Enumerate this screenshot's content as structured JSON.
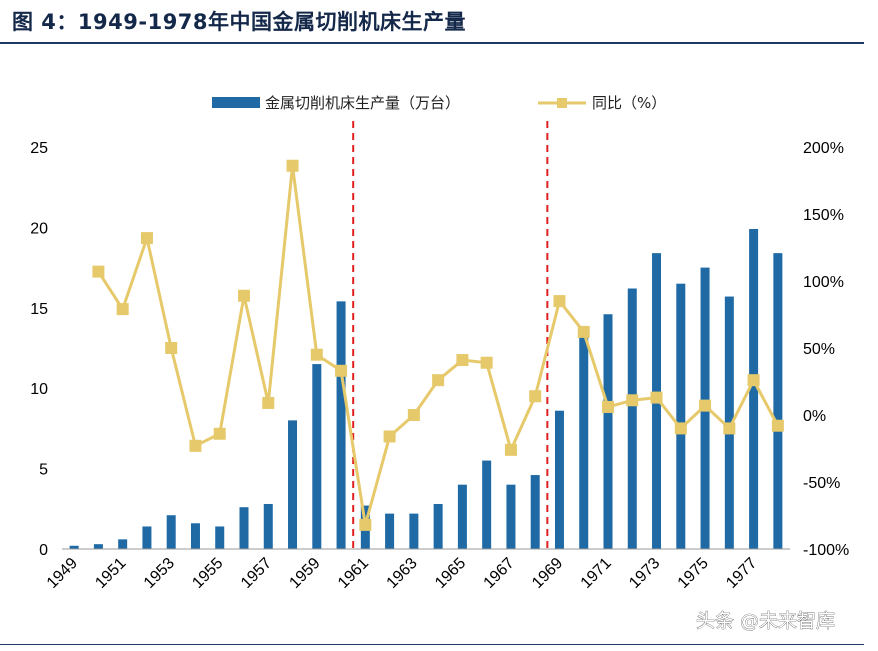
{
  "header": {
    "title": "图 4：1949-1978年中国金属切削机床生产量"
  },
  "watermark": "头条 @未来智库",
  "chart_data": {
    "type": "bar+line",
    "categories": [
      "1949",
      "1950",
      "1951",
      "1952",
      "1953",
      "1954",
      "1955",
      "1956",
      "1957",
      "1958",
      "1959",
      "1960",
      "1961",
      "1962",
      "1963",
      "1964",
      "1965",
      "1966",
      "1967",
      "1968",
      "1969",
      "1970",
      "1971",
      "1972",
      "1973",
      "1974",
      "1975",
      "1976",
      "1977",
      "1978"
    ],
    "x_tick_labels": [
      "1949",
      "1951",
      "1953",
      "1955",
      "1957",
      "1959",
      "1961",
      "1963",
      "1965",
      "1967",
      "1969",
      "1971",
      "1973",
      "1975",
      "1977"
    ],
    "series": [
      {
        "name": "金属切削机床生产量（万台）",
        "type": "bar",
        "axis": "left",
        "color": "#1f6aa5",
        "values": [
          0.2,
          0.3,
          0.6,
          1.4,
          2.1,
          1.6,
          1.4,
          2.6,
          2.8,
          8.0,
          11.5,
          15.4,
          2.7,
          2.2,
          2.2,
          2.8,
          4.0,
          5.5,
          4.0,
          4.6,
          8.6,
          13.5,
          14.6,
          16.2,
          18.4,
          16.5,
          17.5,
          15.7,
          19.9,
          18.4
        ]
      },
      {
        "name": "同比（%）",
        "type": "line",
        "axis": "right",
        "color": "#e6c96a",
        "values": [
          null,
          107,
          79,
          132,
          50,
          -23,
          -14,
          89,
          9,
          186,
          45,
          33,
          -82,
          -16,
          0,
          26,
          41,
          39,
          -26,
          14,
          85,
          62,
          6,
          11,
          13,
          -10,
          7,
          -10,
          26,
          -8
        ]
      }
    ],
    "left_axis": {
      "min": 0,
      "max": 25,
      "ticks": [
        "0",
        "5",
        "10",
        "15",
        "20",
        "25"
      ]
    },
    "right_axis": {
      "min": -100,
      "max": 200,
      "ticks": [
        "-100%",
        "-50%",
        "0%",
        "50%",
        "100%",
        "150%",
        "200%"
      ]
    },
    "reference_lines": [
      {
        "position_between": [
          "1960",
          "1961"
        ],
        "style": "dashed",
        "color": "#e02020"
      },
      {
        "position_between": [
          "1968",
          "1969"
        ],
        "style": "dashed",
        "color": "#e02020"
      }
    ],
    "legend": {
      "placement": "top-center"
    }
  }
}
